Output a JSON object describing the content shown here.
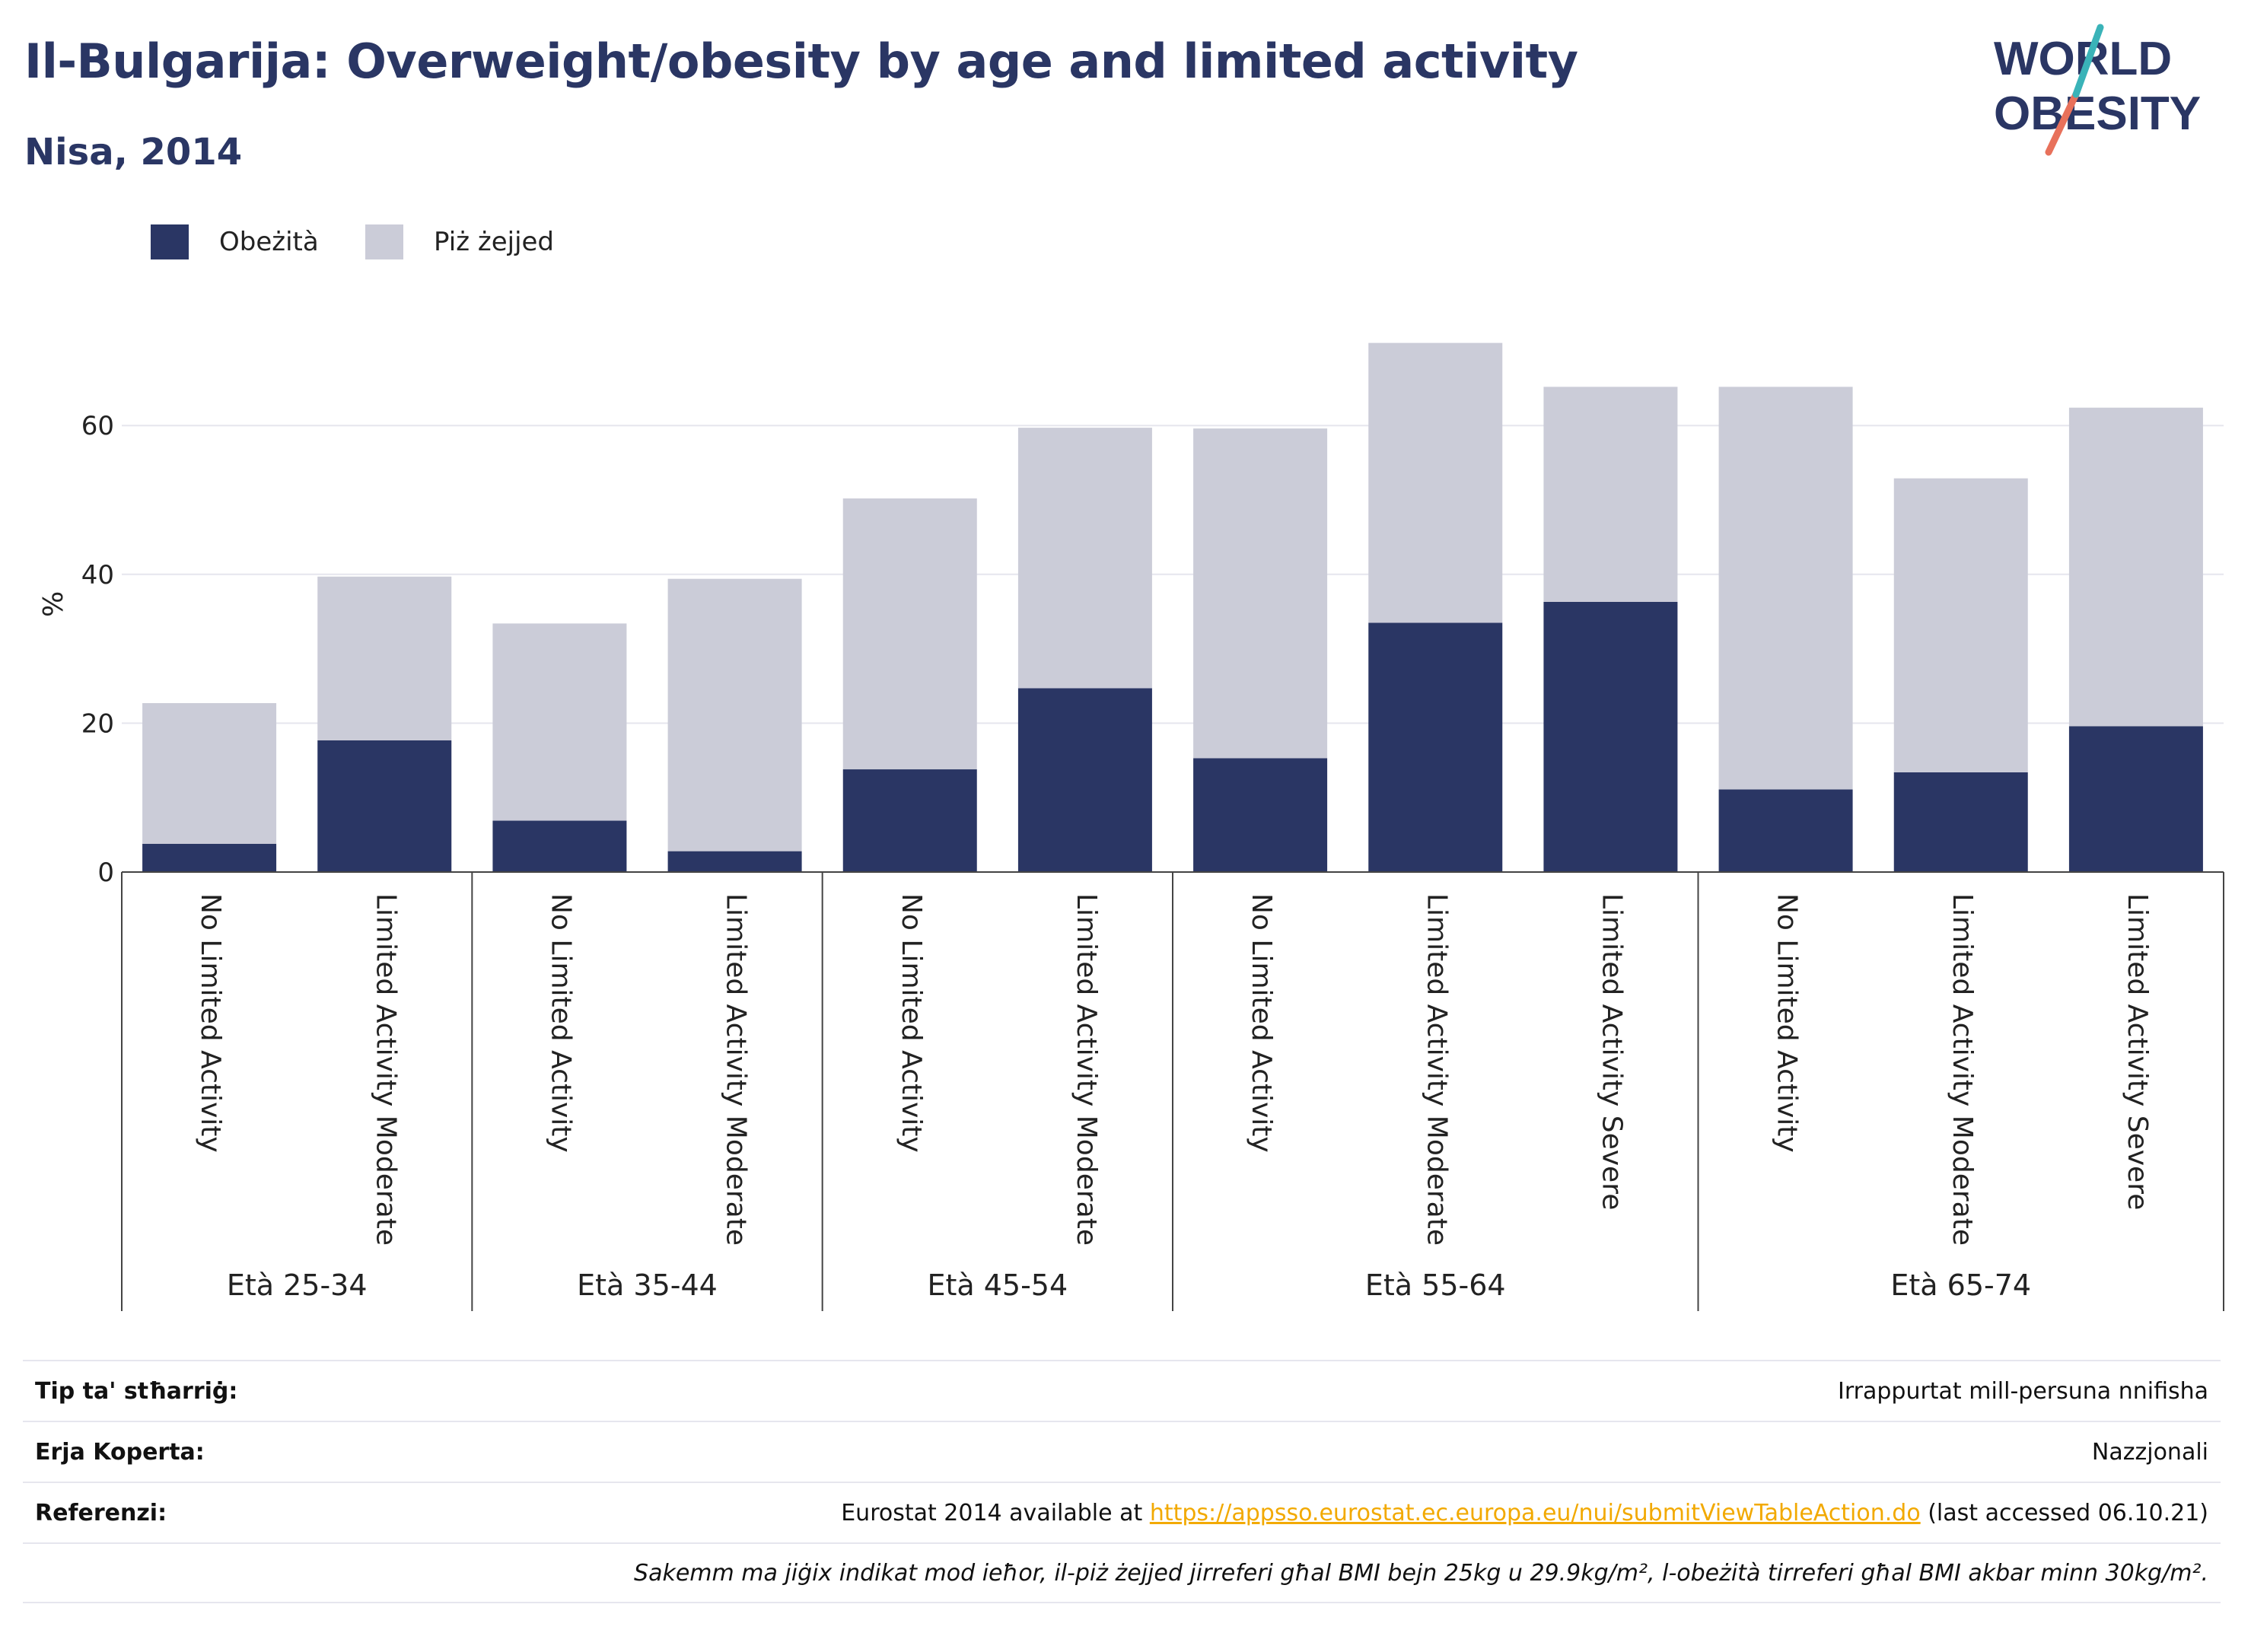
{
  "header": {
    "title": "Il-Bulgarija: Overweight/obesity by age and limited activity",
    "subtitle": "Nisa, 2014"
  },
  "logo": {
    "line1": "WORLD",
    "line2": "OBESITY"
  },
  "colors": {
    "obesity": "#2a3664",
    "overweight": "#cbccd8",
    "accent_red": "#e8715b",
    "accent_teal": "#3ab3b8"
  },
  "legend": [
    {
      "label": "Obeżità",
      "color": "#2a3664"
    },
    {
      "label": "Piż żejjed",
      "color": "#cbccd8"
    }
  ],
  "chart_data": {
    "type": "bar",
    "stacked": true,
    "ylabel": "%",
    "ylim": [
      0,
      72
    ],
    "yticks": [
      0,
      20,
      40,
      60
    ],
    "grid": true,
    "legend_position": "top-left",
    "groups": [
      {
        "label": "Età 25-34",
        "categories": [
          "No Limited Activity",
          "Limited Activity Moderate"
        ]
      },
      {
        "label": "Età 35-44",
        "categories": [
          "No Limited Activity",
          "Limited Activity Moderate"
        ]
      },
      {
        "label": "Età 45-54",
        "categories": [
          "No Limited Activity",
          "Limited Activity Moderate"
        ]
      },
      {
        "label": "Età 55-64",
        "categories": [
          "No Limited Activity",
          "Limited Activity Moderate",
          "Limited Activity Severe"
        ]
      },
      {
        "label": "Età 65-74",
        "categories": [
          "No Limited Activity",
          "Limited Activity Moderate",
          "Limited Activity Severe"
        ]
      }
    ],
    "series": [
      {
        "name": "Obeżità",
        "values": [
          3.8,
          17.7,
          6.9,
          2.8,
          13.8,
          24.7,
          15.3,
          33.5,
          36.3,
          11.1,
          13.4,
          19.6
        ]
      },
      {
        "name": "Piż żejjed",
        "values": [
          18.9,
          22.0,
          26.5,
          36.6,
          36.4,
          35.0,
          44.3,
          37.6,
          28.9,
          54.1,
          39.5,
          42.8
        ]
      }
    ]
  },
  "info": {
    "rows": [
      {
        "label": "Tip ta' stħarriġ:",
        "value": "Irrappurtat mill-persuna nnifisha"
      },
      {
        "label": "Erja Koperta:",
        "value": "Nazzjonali"
      },
      {
        "label": "Referenzi:",
        "value_prefix": "Eurostat 2014 available at ",
        "link": "https://appsso.eurostat.ec.europa.eu/nui/submitViewTableAction.do",
        "value_suffix": " (last accessed 06.10.21)"
      }
    ],
    "note": "Sakemm ma jiġix indikat mod ieħor, il-piż żejjed jirreferi għal BMI bejn 25kg u 29.9kg/m², l-obeżità tirreferi għal BMI akbar minn 30kg/m²."
  }
}
